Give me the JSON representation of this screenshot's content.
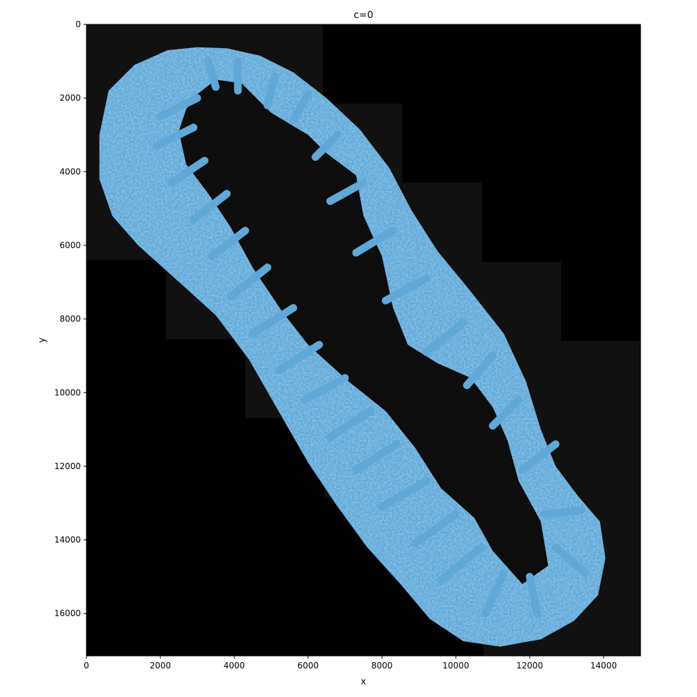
{
  "chart_data": {
    "type": "heatmap",
    "title": "c=0",
    "xlabel": "x",
    "ylabel": "y",
    "xlim": [
      0,
      15000
    ],
    "ylim": [
      17150,
      0
    ],
    "x_ticks": [
      {
        "value": 0,
        "label": "0"
      },
      {
        "value": 2000,
        "label": "2000"
      },
      {
        "value": 4000,
        "label": "4000"
      },
      {
        "value": 6000,
        "label": "6000"
      },
      {
        "value": 8000,
        "label": "8000"
      },
      {
        "value": 10000,
        "label": "10000"
      },
      {
        "value": 12000,
        "label": "12000"
      },
      {
        "value": 14000,
        "label": "14000"
      }
    ],
    "y_ticks": [
      {
        "value": 0,
        "label": "0"
      },
      {
        "value": 2000,
        "label": "2000"
      },
      {
        "value": 4000,
        "label": "4000"
      },
      {
        "value": 6000,
        "label": "6000"
      },
      {
        "value": 8000,
        "label": "8000"
      },
      {
        "value": 10000,
        "label": "10000"
      },
      {
        "value": 12000,
        "label": "12000"
      },
      {
        "value": 14000,
        "label": "14000"
      },
      {
        "value": 16000,
        "label": "16000"
      }
    ],
    "grid": false,
    "background_color": "#000000",
    "tile_color": "#111111",
    "tissue_color": "#5fa8d8",
    "tissue_highlight_color": "#b8dcf3",
    "lumen_color": "#0d0d0d",
    "tiles": [
      [
        0,
        0,
        6400,
        6400
      ],
      [
        2150,
        2150,
        8550,
        8550
      ],
      [
        4300,
        4300,
        10700,
        10700
      ],
      [
        6450,
        2150,
        8550,
        8550
      ],
      [
        8600,
        4300,
        10700,
        10700
      ],
      [
        6450,
        6450,
        12850,
        12850
      ],
      [
        8600,
        8600,
        15000,
        15000
      ],
      [
        10750,
        10750,
        15000,
        17150
      ]
    ],
    "tissue_outline": [
      [
        600,
        1800
      ],
      [
        1300,
        1100
      ],
      [
        2200,
        700
      ],
      [
        3000,
        620
      ],
      [
        3800,
        650
      ],
      [
        4700,
        850
      ],
      [
        5600,
        1300
      ],
      [
        6500,
        2000
      ],
      [
        7400,
        2850
      ],
      [
        8200,
        3900
      ],
      [
        8800,
        5050
      ],
      [
        9500,
        6150
      ],
      [
        10400,
        7250
      ],
      [
        11300,
        8400
      ],
      [
        11900,
        9700
      ],
      [
        12300,
        11000
      ],
      [
        12700,
        12000
      ],
      [
        13300,
        12800
      ],
      [
        13900,
        13500
      ],
      [
        14050,
        14500
      ],
      [
        13850,
        15500
      ],
      [
        13200,
        16200
      ],
      [
        12300,
        16700
      ],
      [
        11200,
        16900
      ],
      [
        10200,
        16750
      ],
      [
        9300,
        16150
      ],
      [
        8500,
        15200
      ],
      [
        7600,
        14200
      ],
      [
        6800,
        13100
      ],
      [
        6000,
        11900
      ],
      [
        5200,
        10500
      ],
      [
        4400,
        9100
      ],
      [
        3500,
        7900
      ],
      [
        2400,
        6900
      ],
      [
        1400,
        6000
      ],
      [
        700,
        5200
      ],
      [
        350,
        4200
      ],
      [
        350,
        3000
      ]
    ],
    "lumen_outline": [
      [
        3000,
        1900
      ],
      [
        3500,
        1500
      ],
      [
        4200,
        1600
      ],
      [
        5000,
        2400
      ],
      [
        6000,
        3000
      ],
      [
        6500,
        3500
      ],
      [
        7300,
        4100
      ],
      [
        7500,
        5200
      ],
      [
        8000,
        6300
      ],
      [
        8300,
        7700
      ],
      [
        8700,
        8700
      ],
      [
        9500,
        9200
      ],
      [
        10400,
        9600
      ],
      [
        11000,
        10400
      ],
      [
        11400,
        11300
      ],
      [
        11700,
        12400
      ],
      [
        12300,
        13500
      ],
      [
        12500,
        14700
      ],
      [
        11800,
        15200
      ],
      [
        11000,
        14300
      ],
      [
        10500,
        13400
      ],
      [
        9600,
        12600
      ],
      [
        8900,
        11500
      ],
      [
        8100,
        10500
      ],
      [
        7100,
        9700
      ],
      [
        6000,
        8700
      ],
      [
        5300,
        7800
      ],
      [
        4500,
        6600
      ],
      [
        3900,
        5500
      ],
      [
        3300,
        4600
      ],
      [
        2700,
        3800
      ],
      [
        2500,
        2900
      ],
      [
        2700,
        2300
      ]
    ],
    "villi": [
      [
        [
          3000,
          2000
        ],
        [
          2000,
          2500
        ]
      ],
      [
        [
          2900,
          2800
        ],
        [
          1900,
          3300
        ]
      ],
      [
        [
          3200,
          3700
        ],
        [
          2300,
          4300
        ]
      ],
      [
        [
          3800,
          4600
        ],
        [
          2900,
          5300
        ]
      ],
      [
        [
          4300,
          5600
        ],
        [
          3400,
          6300
        ]
      ],
      [
        [
          4900,
          6600
        ],
        [
          3900,
          7400
        ]
      ],
      [
        [
          5600,
          7700
        ],
        [
          4500,
          8400
        ]
      ],
      [
        [
          6300,
          8700
        ],
        [
          5200,
          9400
        ]
      ],
      [
        [
          7000,
          9600
        ],
        [
          5900,
          10200
        ]
      ],
      [
        [
          7700,
          10500
        ],
        [
          6600,
          11200
        ]
      ],
      [
        [
          8400,
          11400
        ],
        [
          7300,
          12100
        ]
      ],
      [
        [
          9200,
          12400
        ],
        [
          8000,
          13100
        ]
      ],
      [
        [
          10000,
          13300
        ],
        [
          8900,
          14100
        ]
      ],
      [
        [
          10700,
          14200
        ],
        [
          9600,
          15100
        ]
      ],
      [
        [
          11300,
          14900
        ],
        [
          10800,
          16000
        ]
      ],
      [
        [
          12000,
          15000
        ],
        [
          12200,
          16000
        ]
      ],
      [
        [
          12700,
          14200
        ],
        [
          13500,
          14900
        ]
      ],
      [
        [
          12400,
          13300
        ],
        [
          13400,
          13200
        ]
      ],
      [
        [
          11800,
          12100
        ],
        [
          12700,
          11400
        ]
      ],
      [
        [
          11000,
          10900
        ],
        [
          11700,
          10200
        ]
      ],
      [
        [
          10300,
          9800
        ],
        [
          11000,
          9000
        ]
      ],
      [
        [
          9200,
          8900
        ],
        [
          10200,
          8100
        ]
      ],
      [
        [
          8100,
          7500
        ],
        [
          9200,
          6900
        ]
      ],
      [
        [
          7300,
          6200
        ],
        [
          8300,
          5600
        ]
      ],
      [
        [
          6600,
          4800
        ],
        [
          7500,
          4300
        ]
      ],
      [
        [
          6200,
          3600
        ],
        [
          6800,
          3000
        ]
      ],
      [
        [
          5600,
          2600
        ],
        [
          6000,
          1900
        ]
      ],
      [
        [
          4900,
          2200
        ],
        [
          5100,
          1400
        ]
      ],
      [
        [
          4100,
          1800
        ],
        [
          4100,
          1000
        ]
      ],
      [
        [
          3500,
          1700
        ],
        [
          3300,
          1000
        ]
      ]
    ]
  }
}
